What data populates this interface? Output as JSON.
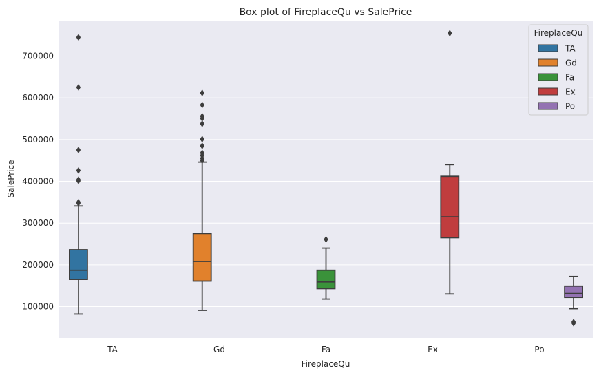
{
  "chart_data": {
    "type": "box",
    "title": "Box plot of FireplaceQu vs SalePrice",
    "xlabel": "FireplaceQu",
    "ylabel": "SalePrice",
    "ylim": [
      25000,
      785000
    ],
    "yticks": [
      100000,
      200000,
      300000,
      400000,
      500000,
      600000,
      700000
    ],
    "ytick_labels": [
      "100000",
      "200000",
      "300000",
      "400000",
      "500000",
      "600000",
      "700000"
    ],
    "categories": [
      "TA",
      "Gd",
      "Fa",
      "Ex",
      "Po"
    ],
    "grid": true,
    "legend": {
      "title": "FireplaceQu",
      "placement": "top-right"
    },
    "series": [
      {
        "name": "TA",
        "color": "#3274a1",
        "whisker_low": 82000,
        "q1": 165000,
        "median": 187000,
        "q3": 236000,
        "whisker_high": 341000,
        "outliers": [
          745000,
          625000,
          475000,
          426000,
          404000,
          401000,
          350000,
          348000
        ]
      },
      {
        "name": "Gd",
        "color": "#e1812c",
        "whisker_low": 91000,
        "q1": 161000,
        "median": 208000,
        "q3": 275000,
        "whisker_high": 446000,
        "outliers": [
          612000,
          583000,
          556000,
          551000,
          538000,
          501000,
          485000,
          468000,
          462000,
          455000,
          450000
        ]
      },
      {
        "name": "Fa",
        "color": "#3a923a",
        "whisker_low": 118000,
        "q1": 143000,
        "median": 159000,
        "q3": 187000,
        "whisker_high": 240000,
        "outliers": [
          261000
        ]
      },
      {
        "name": "Ex",
        "color": "#c03d3e",
        "whisker_low": 130000,
        "q1": 265000,
        "median": 315000,
        "q3": 412000,
        "whisker_high": 440000,
        "outliers": [
          755000
        ]
      },
      {
        "name": "Po",
        "color": "#9372b2",
        "whisker_low": 95000,
        "q1": 122000,
        "median": 131000,
        "q3": 149000,
        "whisker_high": 172000,
        "outliers": [
          63000,
          60000
        ]
      }
    ]
  }
}
